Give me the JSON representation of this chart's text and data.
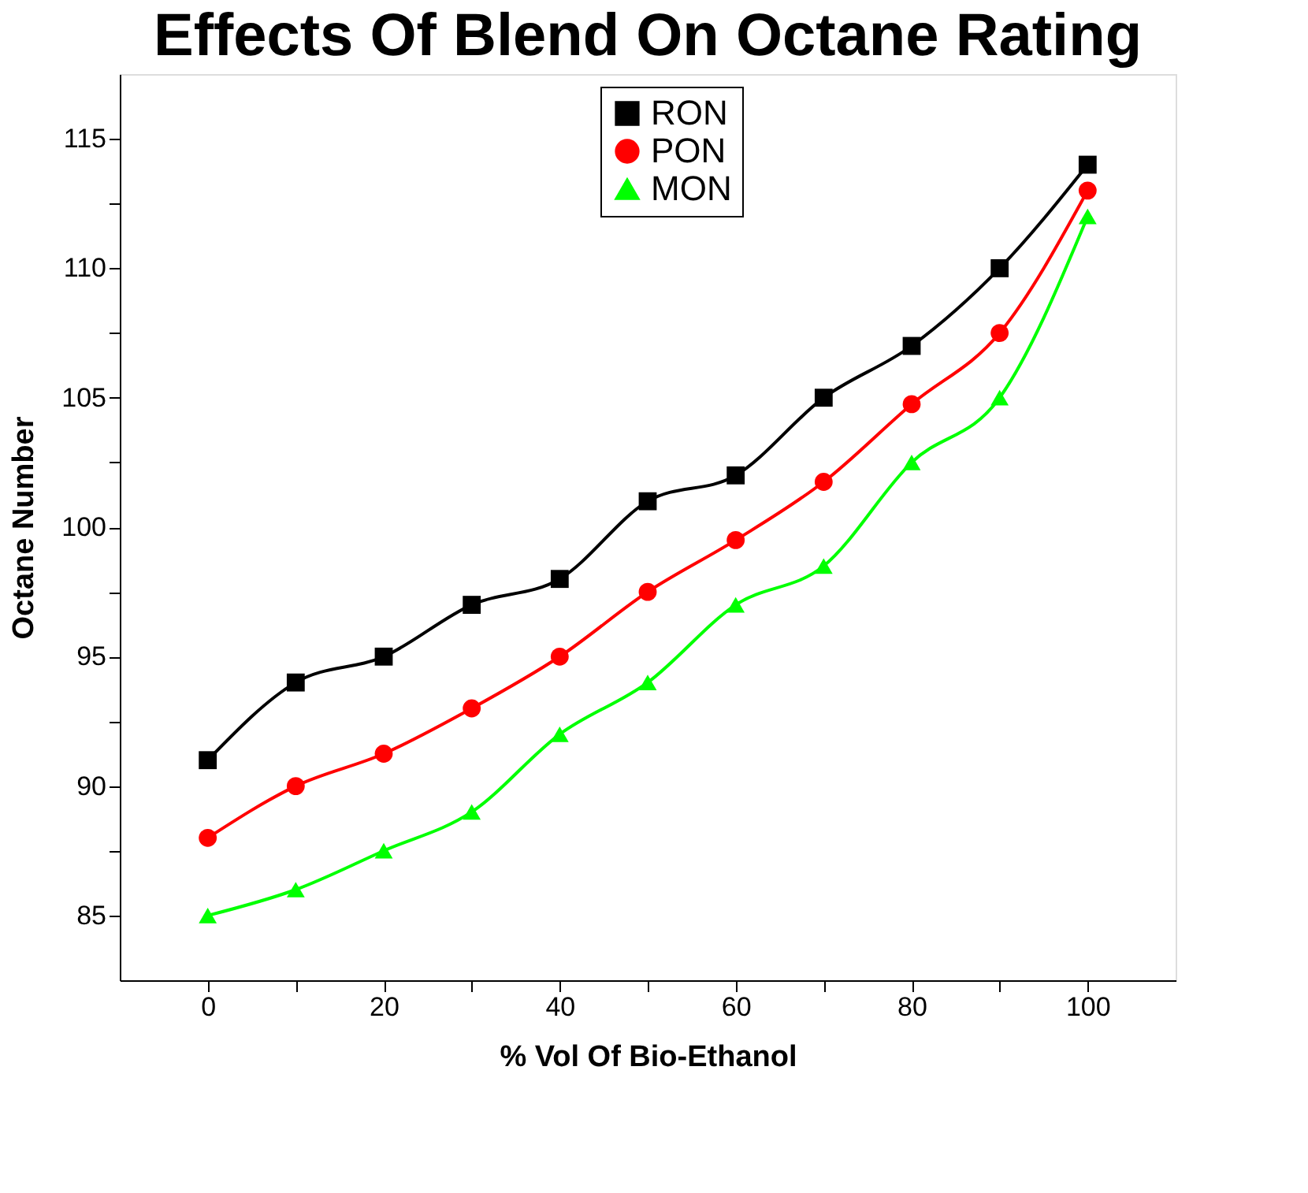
{
  "chart_data": {
    "type": "line",
    "title": "Effects Of Blend On Octane Rating",
    "xlabel": "% Vol Of Bio-Ethanol",
    "ylabel": "Octane Number",
    "x": [
      0,
      10,
      20,
      30,
      40,
      50,
      60,
      70,
      80,
      90,
      100
    ],
    "series": [
      {
        "name": "RON",
        "color": "#000000",
        "marker": "square",
        "values": [
          91,
          94,
          95,
          97,
          98,
          101,
          102,
          105,
          107,
          110,
          114
        ]
      },
      {
        "name": "PON",
        "color": "#ff0000",
        "marker": "circle",
        "values": [
          88,
          90,
          91.25,
          93,
          95,
          97.5,
          99.5,
          101.75,
          104.75,
          107.5,
          113
        ]
      },
      {
        "name": "MON",
        "color": "#00ff00",
        "marker": "triangle",
        "values": [
          85,
          86,
          87.5,
          89,
          92,
          94,
          97,
          98.5,
          102.5,
          105,
          112
        ]
      }
    ],
    "xlim": [
      -10,
      110
    ],
    "ylim": [
      82.5,
      117.5
    ],
    "xticks": [
      0,
      {
        "value": 10,
        "label": null
      },
      20,
      {
        "value": 30,
        "label": null
      },
      40,
      {
        "value": 50,
        "label": null
      },
      60,
      {
        "value": 70,
        "label": null
      },
      80,
      {
        "value": 90,
        "label": null
      },
      100
    ],
    "yticks": [
      85,
      {
        "value": 87.5,
        "label": null
      },
      90,
      {
        "value": 92.5,
        "label": null
      },
      95,
      {
        "value": 97.5,
        "label": null
      },
      100,
      {
        "value": 102.5,
        "label": null
      },
      105,
      {
        "value": 107.5,
        "label": null
      },
      110,
      {
        "value": 112.5,
        "label": null
      },
      115
    ],
    "legend": "top",
    "grid": false,
    "line_style": "solid"
  }
}
